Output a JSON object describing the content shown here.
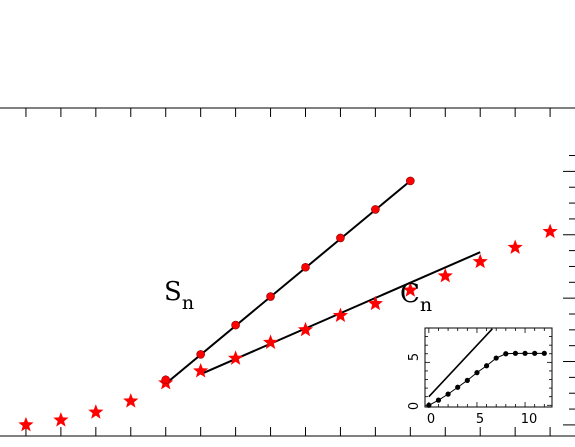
{
  "colors": {
    "background": "#ffffff",
    "axis": "#000000",
    "fit_line": "#000000",
    "marker": "#ff0000",
    "inset_marker": "#000000"
  },
  "chart_data": [
    {
      "type": "scatter",
      "title": "",
      "xlabel": "",
      "ylabel": "",
      "grid": false,
      "legend": "none",
      "x_tick_labels": [],
      "y_tick_labels": [],
      "annotations": [
        {
          "base": "S",
          "sub": "n",
          "placement": "left of the upper fit line, middle of the plot"
        },
        {
          "base": "C",
          "sub": "n",
          "placement": "above the inset, right side"
        }
      ],
      "series": [
        {
          "marker": "star",
          "color": "#ff0000",
          "points": [
            {
              "x": 1,
              "y": 0.0
            },
            {
              "x": 2,
              "y": 0.3
            },
            {
              "x": 3,
              "y": 0.8
            },
            {
              "x": 4,
              "y": 1.5
            },
            {
              "x": 5,
              "y": 2.65
            },
            {
              "x": 6,
              "y": 3.4
            },
            {
              "x": 7,
              "y": 4.2
            },
            {
              "x": 8,
              "y": 5.2
            },
            {
              "x": 9,
              "y": 6.0
            },
            {
              "x": 10,
              "y": 6.9
            },
            {
              "x": 11,
              "y": 7.65
            },
            {
              "x": 12,
              "y": 8.5
            },
            {
              "x": 13,
              "y": 9.4
            },
            {
              "x": 14,
              "y": 10.3
            },
            {
              "x": 15,
              "y": 11.2
            },
            {
              "x": 16,
              "y": 12.2
            },
            {
              "x": 17,
              "y": 13.1
            },
            {
              "x": 18,
              "y": 14.2
            }
          ]
        },
        {
          "marker": "circle",
          "color": "#ff0000",
          "points": [
            {
              "x": 5,
              "y": 2.85
            },
            {
              "x": 6,
              "y": 4.45
            },
            {
              "x": 7,
              "y": 6.3
            },
            {
              "x": 8,
              "y": 8.1
            },
            {
              "x": 9,
              "y": 9.95
            },
            {
              "x": 10,
              "y": 11.8
            },
            {
              "x": 11,
              "y": 13.6
            },
            {
              "x": 12,
              "y": 15.4
            }
          ]
        }
      ],
      "fit_lines": [
        {
          "x1": 5,
          "y1": 2.6,
          "x2": 12,
          "y2": 15.4
        },
        {
          "x1": 6,
          "y1": 3.2,
          "x2": 14,
          "y2": 10.9
        }
      ],
      "xlim": [
        0.2,
        17.6
      ],
      "ylim": [
        -0.7,
        20.0
      ]
    },
    {
      "type": "scatter",
      "role": "inset",
      "title": "",
      "xlabel": "",
      "ylabel": "",
      "grid": false,
      "legend": "none",
      "x_tick_labels": [
        "0",
        "5",
        "10"
      ],
      "y_tick_labels": [
        "0",
        "5"
      ],
      "xlim": [
        -0.4,
        12.8
      ],
      "ylim": [
        -0.2,
        9.0
      ],
      "series": [
        {
          "marker": "circle",
          "color": "#000000",
          "connected": true,
          "points": [
            {
              "x": 0,
              "y": 0
            },
            {
              "x": 1,
              "y": 0.6
            },
            {
              "x": 2,
              "y": 1.3
            },
            {
              "x": 3,
              "y": 2.1
            },
            {
              "x": 4,
              "y": 2.9
            },
            {
              "x": 5,
              "y": 3.8
            },
            {
              "x": 6,
              "y": 4.6
            },
            {
              "x": 7,
              "y": 5.5
            },
            {
              "x": 8,
              "y": 6.0
            },
            {
              "x": 9,
              "y": 6.05
            },
            {
              "x": 10,
              "y": 6.05
            },
            {
              "x": 11,
              "y": 6.05
            },
            {
              "x": 12,
              "y": 6.05
            }
          ]
        }
      ],
      "fit_lines": [
        {
          "x1": 0,
          "y1": 1.0,
          "x2": 6.6,
          "y2": 8.9
        }
      ]
    }
  ]
}
